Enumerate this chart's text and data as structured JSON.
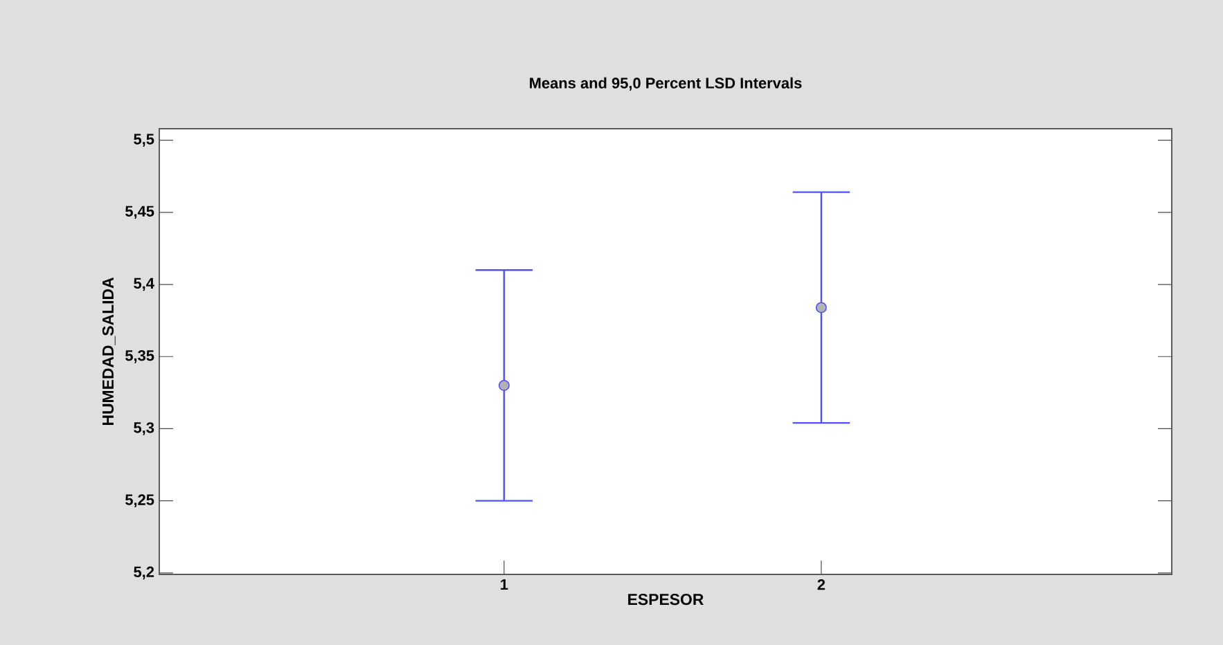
{
  "chart_data": {
    "type": "scatter",
    "title": "Means and 95,0 Percent LSD Intervals",
    "xlabel": "ESPESOR",
    "ylabel": "HUMEDAD_SALIDA",
    "categories": [
      "1",
      "2"
    ],
    "series": [
      {
        "color": "#5050ff",
        "values": [
          5.33,
          5.384
        ],
        "errors": [
          0.08,
          0.08
        ]
      }
    ],
    "ylim": [
      5.199,
      5.508
    ],
    "yticks": [
      {
        "value": 5.2,
        "label": "5,2"
      },
      {
        "value": 5.25,
        "label": "5,25"
      },
      {
        "value": 5.3,
        "label": "5,3"
      },
      {
        "value": 5.35,
        "label": "5,35"
      },
      {
        "value": 5.4,
        "label": "5,4"
      },
      {
        "value": 5.45,
        "label": "5,45"
      },
      {
        "value": 5.5,
        "label": "5,5"
      }
    ],
    "marker": "circle",
    "grid": false
  }
}
